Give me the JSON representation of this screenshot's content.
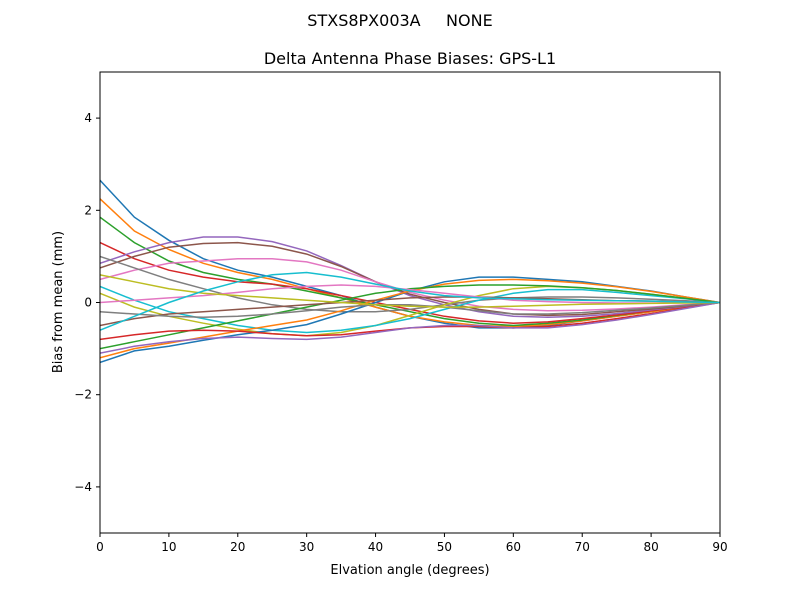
{
  "chart_data": {
    "type": "line",
    "suptitle": "STXS8PX003A     NONE",
    "title": "Delta Antenna Phase Biases: GPS-L1",
    "xlabel": "Elvation angle (degrees)",
    "ylabel": "Bias from mean (mm)",
    "xlim": [
      0,
      90
    ],
    "ylim": [
      -5,
      5
    ],
    "xticks": [
      0,
      10,
      20,
      30,
      40,
      50,
      60,
      70,
      80,
      90
    ],
    "yticks": [
      -4,
      -2,
      0,
      2,
      4
    ],
    "ytick_labels": [
      "−4",
      "−2",
      "0",
      "2",
      "4"
    ],
    "grid": false,
    "colors": [
      "#1f77b4",
      "#ff7f0e",
      "#2ca02c",
      "#d62728",
      "#9467bd",
      "#8c564b",
      "#e377c2",
      "#7f7f7f",
      "#bcbd22",
      "#17becf"
    ],
    "x": [
      0,
      5,
      10,
      15,
      20,
      25,
      30,
      35,
      40,
      45,
      50,
      55,
      60,
      65,
      70,
      75,
      80,
      85,
      90
    ],
    "series": [
      {
        "values": [
          2.65,
          1.85,
          1.35,
          0.95,
          0.7,
          0.55,
          0.35,
          0.15,
          -0.1,
          -0.3,
          -0.45,
          -0.55,
          -0.55,
          -0.5,
          -0.4,
          -0.3,
          -0.2,
          -0.1,
          0
        ]
      },
      {
        "values": [
          2.25,
          1.55,
          1.15,
          0.85,
          0.65,
          0.5,
          0.3,
          0.1,
          -0.1,
          -0.3,
          -0.42,
          -0.5,
          -0.52,
          -0.48,
          -0.4,
          -0.3,
          -0.2,
          -0.1,
          0
        ]
      },
      {
        "values": [
          1.85,
          1.3,
          0.9,
          0.65,
          0.5,
          0.4,
          0.25,
          0.1,
          -0.05,
          -0.2,
          -0.35,
          -0.45,
          -0.5,
          -0.45,
          -0.38,
          -0.28,
          -0.18,
          -0.09,
          0
        ]
      },
      {
        "values": [
          1.3,
          0.95,
          0.7,
          0.55,
          0.45,
          0.4,
          0.3,
          0.15,
          0.0,
          -0.15,
          -0.3,
          -0.4,
          -0.45,
          -0.42,
          -0.35,
          -0.27,
          -0.18,
          -0.09,
          0
        ]
      },
      {
        "values": [
          0.85,
          1.1,
          1.3,
          1.42,
          1.42,
          1.32,
          1.12,
          0.8,
          0.45,
          0.15,
          -0.05,
          -0.2,
          -0.3,
          -0.32,
          -0.3,
          -0.24,
          -0.16,
          -0.08,
          0
        ]
      },
      {
        "values": [
          0.75,
          1.0,
          1.2,
          1.28,
          1.3,
          1.22,
          1.05,
          0.78,
          0.45,
          0.18,
          0.0,
          -0.15,
          -0.25,
          -0.28,
          -0.26,
          -0.2,
          -0.14,
          -0.07,
          0
        ]
      },
      {
        "values": [
          0.5,
          0.7,
          0.85,
          0.9,
          0.95,
          0.95,
          0.88,
          0.7,
          0.45,
          0.22,
          0.05,
          -0.08,
          -0.15,
          -0.18,
          -0.17,
          -0.14,
          -0.1,
          -0.05,
          0
        ]
      },
      {
        "values": [
          1.0,
          0.75,
          0.5,
          0.3,
          0.1,
          -0.05,
          -0.15,
          -0.2,
          -0.2,
          -0.15,
          -0.05,
          0.05,
          0.1,
          0.12,
          0.12,
          0.1,
          0.07,
          0.04,
          0
        ]
      },
      {
        "values": [
          0.2,
          -0.1,
          -0.3,
          -0.45,
          -0.58,
          -0.68,
          -0.72,
          -0.65,
          -0.5,
          -0.28,
          -0.05,
          0.15,
          0.3,
          0.35,
          0.32,
          0.26,
          0.18,
          0.09,
          0
        ]
      },
      {
        "values": [
          0.35,
          0.05,
          -0.2,
          -0.35,
          -0.5,
          -0.6,
          -0.65,
          -0.6,
          -0.5,
          -0.35,
          -0.15,
          0.05,
          0.2,
          0.28,
          0.28,
          0.22,
          0.15,
          0.08,
          0
        ]
      },
      {
        "values": [
          -1.3,
          -1.05,
          -0.95,
          -0.82,
          -0.7,
          -0.6,
          -0.48,
          -0.25,
          0.0,
          0.25,
          0.45,
          0.55,
          0.55,
          0.5,
          0.45,
          0.35,
          0.25,
          0.12,
          0
        ]
      },
      {
        "values": [
          -1.2,
          -1.0,
          -0.88,
          -0.75,
          -0.62,
          -0.5,
          -0.38,
          -0.18,
          0.05,
          0.25,
          0.4,
          0.48,
          0.5,
          0.47,
          0.42,
          0.34,
          0.24,
          0.12,
          0
        ]
      },
      {
        "values": [
          -1.0,
          -0.85,
          -0.7,
          -0.55,
          -0.4,
          -0.25,
          -0.1,
          0.05,
          0.2,
          0.3,
          0.35,
          0.38,
          0.38,
          0.36,
          0.32,
          0.26,
          0.18,
          0.09,
          0
        ]
      },
      {
        "values": [
          -0.8,
          -0.7,
          -0.62,
          -0.6,
          -0.62,
          -0.68,
          -0.72,
          -0.7,
          -0.62,
          -0.55,
          -0.52,
          -0.52,
          -0.55,
          -0.52,
          -0.45,
          -0.35,
          -0.24,
          -0.12,
          0
        ]
      },
      {
        "values": [
          -1.1,
          -0.95,
          -0.85,
          -0.78,
          -0.75,
          -0.78,
          -0.8,
          -0.75,
          -0.65,
          -0.55,
          -0.5,
          -0.5,
          -0.55,
          -0.55,
          -0.48,
          -0.38,
          -0.26,
          -0.13,
          0
        ]
      },
      {
        "values": [
          -0.5,
          -0.35,
          -0.25,
          -0.2,
          -0.15,
          -0.1,
          -0.05,
          0.0,
          0.05,
          0.1,
          0.12,
          0.12,
          0.1,
          0.08,
          0.06,
          0.04,
          0.03,
          0.01,
          0
        ]
      },
      {
        "values": [
          0.0,
          0.05,
          0.1,
          0.15,
          0.22,
          0.3,
          0.35,
          0.38,
          0.35,
          0.28,
          0.2,
          0.12,
          0.05,
          0.02,
          0.0,
          -0.01,
          -0.01,
          0.0,
          0
        ]
      },
      {
        "values": [
          -0.2,
          -0.25,
          -0.3,
          -0.32,
          -0.3,
          -0.25,
          -0.18,
          -0.1,
          -0.05,
          -0.05,
          -0.1,
          -0.18,
          -0.25,
          -0.25,
          -0.22,
          -0.17,
          -0.12,
          -0.06,
          0
        ]
      },
      {
        "values": [
          0.6,
          0.45,
          0.3,
          0.2,
          0.15,
          0.1,
          0.05,
          0.0,
          -0.05,
          -0.08,
          -0.1,
          -0.1,
          -0.08,
          -0.06,
          -0.04,
          -0.03,
          -0.02,
          -0.01,
          0
        ]
      },
      {
        "values": [
          -0.6,
          -0.3,
          0.0,
          0.25,
          0.45,
          0.6,
          0.65,
          0.55,
          0.4,
          0.25,
          0.15,
          0.1,
          0.08,
          0.06,
          0.05,
          0.04,
          0.03,
          0.01,
          0
        ]
      }
    ]
  }
}
